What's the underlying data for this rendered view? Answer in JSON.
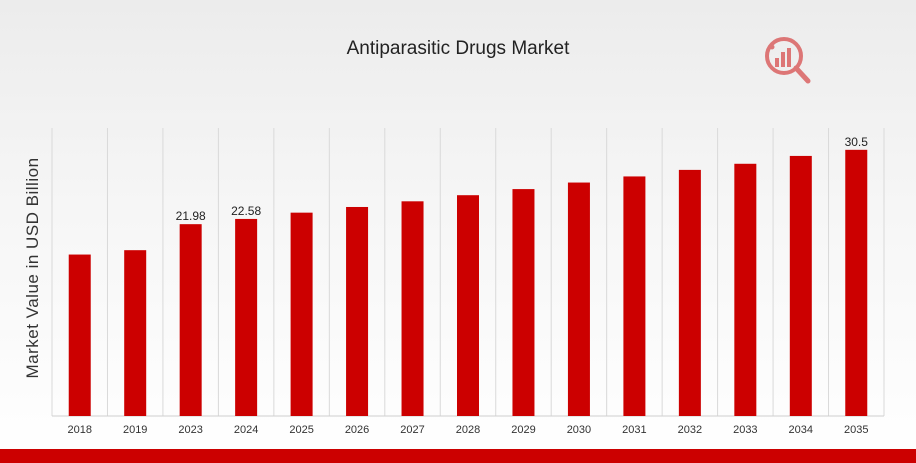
{
  "chart_data": {
    "type": "bar",
    "title": "Antiparasitic Drugs Market",
    "xlabel": "",
    "ylabel": "Market Value in USD Billion",
    "categories": [
      "2018",
      "2019",
      "2023",
      "2024",
      "2025",
      "2026",
      "2027",
      "2028",
      "2029",
      "2030",
      "2031",
      "2032",
      "2033",
      "2034",
      "2035"
    ],
    "values": [
      18.5,
      19.0,
      21.98,
      22.58,
      23.3,
      23.95,
      24.6,
      25.3,
      26.0,
      26.75,
      27.45,
      28.2,
      28.9,
      29.8,
      30.5
    ],
    "data_labels": [
      {
        "index": 2,
        "text": "21.98"
      },
      {
        "index": 3,
        "text": "22.58"
      },
      {
        "index": 14,
        "text": "30.5"
      }
    ],
    "ylim": [
      0,
      33
    ],
    "grid": "vertical",
    "legend": "none",
    "colors": {
      "bar": "#cc0000",
      "stripe": "#cc0000",
      "grid": "#d9d9d9",
      "logo": "#cc0000"
    }
  },
  "logo": {
    "icon": "magnifier-chart-logo-icon"
  }
}
